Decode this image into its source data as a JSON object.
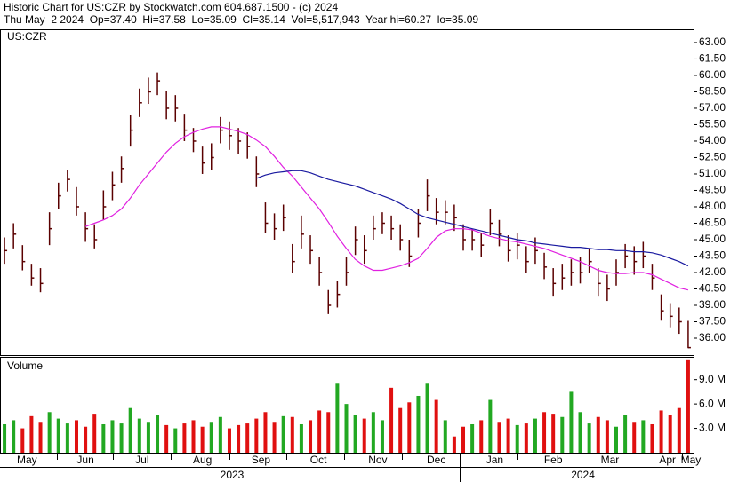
{
  "header": {
    "line1": "Historic Chart for US:CZR by Stockwatch.com 604.687.1500 - (c) 2024",
    "line2": "Thu May  2 2024  Op=37.40  Hi=37.58  Lo=35.09  Cl=35.14  Vol=5,517,943  Year hi=60.27  lo=35.09"
  },
  "chart_data": {
    "type": "ohlc",
    "symbol": "US:CZR",
    "bar_color": "#5a0000",
    "xlim": [
      -0.5,
      76.6
    ],
    "xticks": [
      {
        "value": 2.5,
        "label": "May"
      },
      {
        "value": 9,
        "label": "Jun"
      },
      {
        "value": 15.3,
        "label": "Jul"
      },
      {
        "value": 22,
        "label": "Aug"
      },
      {
        "value": 28.5,
        "label": "Sep"
      },
      {
        "value": 34.9,
        "label": "Oct"
      },
      {
        "value": 41.5,
        "label": "Nov"
      },
      {
        "value": 48,
        "label": "Dec"
      },
      {
        "value": 54.5,
        "label": "Jan"
      },
      {
        "value": 61,
        "label": "Feb"
      },
      {
        "value": 67.3,
        "label": "Mar"
      },
      {
        "value": 73.7,
        "label": "Apr"
      },
      {
        "value": 76.3,
        "label": "May"
      }
    ],
    "year_ticks": [
      {
        "value": 25.3,
        "label": "2023"
      },
      {
        "value": 64.3,
        "label": "2024"
      }
    ],
    "ylim": [
      34.46,
      64.05
    ],
    "yticks": [
      {
        "value": 36,
        "label": "36.00"
      },
      {
        "value": 37.5,
        "label": "37.50"
      },
      {
        "value": 39,
        "label": "39.00"
      },
      {
        "value": 40.5,
        "label": "40.50"
      },
      {
        "value": 42,
        "label": "42.00"
      },
      {
        "value": 43.5,
        "label": "43.50"
      },
      {
        "value": 45,
        "label": "45.00"
      },
      {
        "value": 46.5,
        "label": "46.50"
      },
      {
        "value": 48,
        "label": "48.00"
      },
      {
        "value": 49.5,
        "label": "49.50"
      },
      {
        "value": 51,
        "label": "51.00"
      },
      {
        "value": 52.5,
        "label": "52.50"
      },
      {
        "value": 54,
        "label": "54.00"
      },
      {
        "value": 55.5,
        "label": "55.50"
      },
      {
        "value": 57,
        "label": "57.00"
      },
      {
        "value": 58.5,
        "label": "58.50"
      },
      {
        "value": 60,
        "label": "60.00"
      },
      {
        "value": 61.5,
        "label": "61.50"
      },
      {
        "value": 63,
        "label": "63.00"
      }
    ],
    "high": [
      45.2,
      46.5,
      44.5,
      42.8,
      42.4,
      47.5,
      50.2,
      51.4,
      49.8,
      47.5,
      46.4,
      49.5,
      51.2,
      52.6,
      56.4,
      58.8,
      59.8,
      60.27,
      58.6,
      58.2,
      56.5,
      55.2,
      53.5,
      53.8,
      56.2,
      55.8,
      55.2,
      54.8,
      52.6,
      48.4,
      47.4,
      48.2,
      44.6,
      47.2,
      45.4,
      43.4,
      40.4,
      41.2,
      43.4,
      46.2,
      45.4,
      47.2,
      47.5,
      47.2,
      46.4,
      45,
      47.8,
      50.5,
      48.8,
      48.6,
      48.2,
      46.4,
      46,
      45.6,
      47.8,
      46.8,
      45.4,
      45.6,
      44.4,
      45.2,
      43.8,
      42.4,
      42.8,
      43.2,
      43.4,
      44.2,
      42.4,
      41.8,
      43.2,
      44.6,
      44.4,
      44.8,
      42.8,
      40,
      39.2,
      38.8,
      37.58
    ],
    "low": [
      42.8,
      44.2,
      42.2,
      40.8,
      40.2,
      44.5,
      47.8,
      49.4,
      47.2,
      44.8,
      44.2,
      46.8,
      48.6,
      50.2,
      53.5,
      56.2,
      57.4,
      58.2,
      56,
      55.8,
      54,
      53,
      51,
      51.4,
      53.8,
      53.2,
      52.8,
      52.4,
      49.8,
      45.6,
      45,
      45.8,
      42,
      44.2,
      42.8,
      40.8,
      38.2,
      38.8,
      40.8,
      43.6,
      42.8,
      45,
      45.5,
      45,
      44,
      42.5,
      45.2,
      47.6,
      46.4,
      46.4,
      45.8,
      44,
      44,
      43.4,
      45.4,
      44.4,
      43,
      43.2,
      42,
      42.8,
      41.4,
      39.8,
      40.4,
      40.8,
      41,
      42,
      39.8,
      39.4,
      40.8,
      42.4,
      41.8,
      42.4,
      40.4,
      37.6,
      37,
      36.4,
      35.09
    ],
    "close": [
      44,
      45.5,
      43,
      41.5,
      41,
      46,
      49,
      50.5,
      48,
      46,
      45,
      48,
      50,
      51.5,
      55,
      57.5,
      58.5,
      59.5,
      57,
      57,
      55,
      54,
      52,
      52.5,
      55,
      54.5,
      54,
      53.5,
      51,
      46.5,
      46,
      47,
      43,
      45.5,
      44,
      42,
      39,
      40,
      42,
      45,
      44,
      46,
      46.5,
      46,
      45,
      43.5,
      46.5,
      49,
      47.5,
      47.5,
      47,
      45,
      45,
      44.5,
      46.5,
      45.5,
      44,
      44.5,
      43,
      44,
      42.5,
      41,
      41.5,
      42,
      42,
      43,
      41,
      40.5,
      42,
      43.5,
      43,
      43.5,
      41.5,
      38.5,
      38,
      37.5,
      35.14
    ],
    "moving_averages": [
      {
        "color": "#e020e0",
        "values": [
          null,
          null,
          null,
          null,
          null,
          null,
          null,
          null,
          null,
          46.2,
          46.5,
          46.8,
          47.2,
          47.8,
          48.8,
          50,
          51,
          52,
          53,
          53.8,
          54.4,
          54.8,
          55.1,
          55.3,
          55.3,
          55.1,
          54.9,
          54.6,
          54.1,
          53.5,
          52.6,
          51.6,
          50.8,
          49.8,
          48.8,
          47.8,
          46.6,
          45.3,
          44.2,
          43.2,
          42.6,
          42.2,
          42.2,
          42.4,
          42.6,
          42.9,
          43.3,
          44.2,
          45.2,
          45.8,
          46,
          46,
          45.9,
          45.6,
          45.3,
          45.1,
          44.9,
          44.8,
          44.6,
          44.4,
          44.2,
          43.9,
          43.6,
          43.3,
          43,
          42.6,
          42.2,
          42,
          41.9,
          41.9,
          42,
          42,
          41.8,
          41.4,
          41,
          40.6,
          40.4
        ]
      },
      {
        "color": "#1a1aa0",
        "values": [
          null,
          null,
          null,
          null,
          null,
          null,
          null,
          null,
          null,
          null,
          null,
          null,
          null,
          null,
          null,
          null,
          null,
          null,
          null,
          null,
          null,
          null,
          null,
          null,
          null,
          null,
          null,
          null,
          50.6,
          50.9,
          51.1,
          51.2,
          51.3,
          51.3,
          51.1,
          50.8,
          50.5,
          50.3,
          50.1,
          49.9,
          49.6,
          49.3,
          49,
          48.7,
          48.3,
          47.8,
          47.3,
          47,
          46.8,
          46.6,
          46.4,
          46.2,
          46,
          45.8,
          45.6,
          45.4,
          45.2,
          45,
          44.9,
          44.7,
          44.6,
          44.5,
          44.4,
          44.3,
          44.3,
          44.2,
          44.1,
          44.1,
          44,
          44,
          43.9,
          43.9,
          43.8,
          43.6,
          43.3,
          43,
          42.6
        ]
      }
    ],
    "volume": {
      "label": "Volume",
      "up_color": "#22a822",
      "down_color": "#e01010",
      "ylim": [
        0,
        11.7
      ],
      "yticks": [
        {
          "value": 3,
          "label": "3.0 M"
        },
        {
          "value": 6,
          "label": "6.0 M"
        },
        {
          "value": 9,
          "label": "9.0 M"
        }
      ],
      "values": [
        3.5,
        4,
        3,
        4.5,
        3.8,
        5,
        4.2,
        3.6,
        4,
        3.2,
        4.8,
        3.5,
        4,
        3.6,
        5.5,
        4.2,
        3.8,
        4.6,
        3.4,
        3,
        3.6,
        4,
        3.2,
        3.8,
        4.4,
        3,
        3.4,
        3.6,
        4.2,
        5,
        3.8,
        4.5,
        4.4,
        3.5,
        4,
        5.2,
        5,
        8.5,
        6,
        4.6,
        4.2,
        5,
        4,
        8,
        5.5,
        6.2,
        7,
        8.5,
        6.5,
        4,
        2,
        3.2,
        3.5,
        4,
        6.5,
        3.8,
        4.2,
        3.4,
        3.6,
        4.2,
        5,
        4.8,
        4.4,
        7.5,
        5,
        3.6,
        4.4,
        4,
        3.2,
        4.6,
        3.8,
        4,
        3.5,
        5.2,
        4.6,
        5.5,
        11.5
      ]
    }
  }
}
